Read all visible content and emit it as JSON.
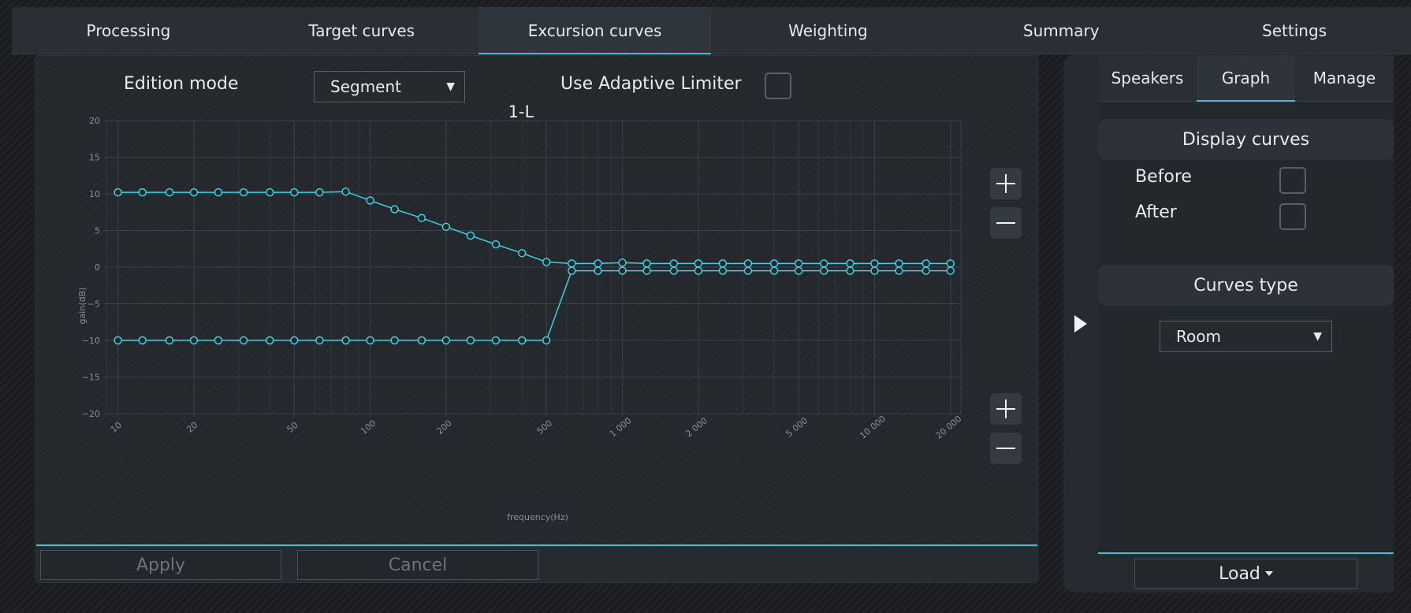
{
  "top_tabs": [
    {
      "label": "Processing"
    },
    {
      "label": "Target curves"
    },
    {
      "label": "Excursion curves",
      "active": true
    },
    {
      "label": "Weighting"
    },
    {
      "label": "Summary"
    },
    {
      "label": "Settings"
    }
  ],
  "editor": {
    "edition_mode_label": "Edition mode",
    "edition_mode_value": "Segment",
    "limiter_label": "Use Adaptive Limiter",
    "limiter_checked": false,
    "apply_label": "Apply",
    "cancel_label": "Cancel"
  },
  "side_panel": {
    "tabs": [
      {
        "label": "Speakers"
      },
      {
        "label": "Graph",
        "active": true
      },
      {
        "label": "Manage"
      }
    ],
    "display_curves_title": "Display curves",
    "before_label": "Before",
    "after_label": "After",
    "before_checked": false,
    "after_checked": false,
    "curves_type_title": "Curves type",
    "curves_type_value": "Room",
    "load_label": "Load"
  },
  "icons": {
    "select_arrow": "triangle-down-icon",
    "zoom_in": "plus-icon",
    "zoom_out": "minus-icon",
    "expand": "play-right-icon",
    "load_caret": "caret-down-icon"
  },
  "colors": {
    "accent": "#2fc6d6",
    "curve": "#36d3e0",
    "grid": "#3c4147"
  },
  "chart_data": {
    "type": "line",
    "title": "1-L",
    "xlabel": "frequency(Hz)",
    "ylabel": "gain(dB)",
    "x_scale": "log",
    "xlim": [
      9,
      22000
    ],
    "ylim": [
      -20,
      20
    ],
    "grid": true,
    "x_ticks": [
      {
        "value": 10,
        "label": "10"
      },
      {
        "value": 20,
        "label": "20"
      },
      {
        "value": 50,
        "label": "50"
      },
      {
        "value": 100,
        "label": "100"
      },
      {
        "value": 200,
        "label": "200"
      },
      {
        "value": 500,
        "label": "500"
      },
      {
        "value": 1000,
        "label": "1 000"
      },
      {
        "value": 2000,
        "label": "2 000"
      },
      {
        "value": 5000,
        "label": "5 000"
      },
      {
        "value": 10000,
        "label": "10 000"
      },
      {
        "value": 20000,
        "label": "20 000"
      }
    ],
    "y_ticks": [
      20,
      15,
      10,
      5,
      0,
      -5,
      -10,
      -15,
      -20
    ],
    "x": [
      10,
      12.5,
      16,
      20,
      25,
      31.5,
      40,
      50,
      63,
      80,
      100,
      125,
      160,
      200,
      250,
      315,
      400,
      500,
      630,
      800,
      1000,
      1250,
      1600,
      2000,
      2500,
      3150,
      4000,
      5000,
      6300,
      8000,
      10000,
      12500,
      16000,
      20000
    ],
    "series": [
      {
        "values": [
          10.2,
          10.2,
          10.2,
          10.2,
          10.2,
          10.2,
          10.2,
          10.2,
          10.2,
          10.3,
          9.1,
          7.9,
          6.7,
          5.5,
          4.3,
          3.1,
          1.9,
          0.7,
          0.5,
          0.5,
          0.6,
          0.5,
          0.5,
          0.5,
          0.5,
          0.5,
          0.5,
          0.5,
          0.5,
          0.5,
          0.5,
          0.5,
          0.5,
          0.5
        ]
      },
      {
        "values": [
          -10.0,
          -10.0,
          -10.0,
          -10.0,
          -10.0,
          -10.0,
          -10.0,
          -10.0,
          -10.0,
          -10.0,
          -10.0,
          -10.0,
          -10.0,
          -10.0,
          -10.0,
          -10.0,
          -10.0,
          -10.0,
          -0.5,
          -0.5,
          -0.5,
          -0.5,
          -0.5,
          -0.5,
          -0.5,
          -0.5,
          -0.5,
          -0.5,
          -0.5,
          -0.5,
          -0.5,
          -0.5,
          -0.5,
          -0.5
        ]
      }
    ]
  }
}
